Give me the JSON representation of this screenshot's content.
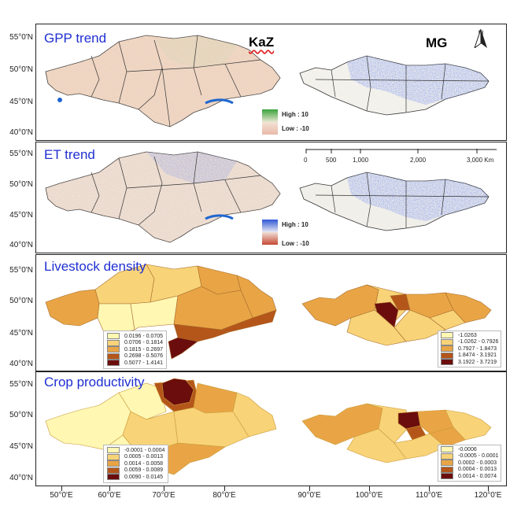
{
  "labels": {
    "kaz": "KaZ",
    "mg": "MG",
    "north": "N"
  },
  "lat_ticks": [
    "55°0'N",
    "50°0'N",
    "45°0'N",
    "40°0'N"
  ],
  "lon_ticks": [
    "50°0'E",
    "60°0'E",
    "70°0'E",
    "80°0'E",
    "90°0'E",
    "100°0'E",
    "110°0'E",
    "120°0'E"
  ],
  "scale": {
    "ticks": [
      "0",
      "500",
      "1,000",
      "2,000",
      "3,000 Km"
    ]
  },
  "panels": [
    {
      "title": "GPP trend",
      "legend": {
        "high": "High : 10",
        "low": "Low : -10",
        "high_color": "#4aa64a",
        "low_color": "#e8b8a8"
      }
    },
    {
      "title": "ET trend",
      "legend": {
        "high": "High : 10",
        "low": "Low : -10",
        "high_color": "#2f57d6",
        "low_color": "#c64a34"
      }
    },
    {
      "title": "Livestock density",
      "kaz_classes": [
        "0.0196 - 0.0705",
        "0.0706 - 0.1814",
        "0.1815 - 0.2697",
        "0.2698 - 0.5076",
        "0.5077 - 1.4141"
      ],
      "mg_classes": [
        "-1.0263",
        "-1.0262 - 0.7926",
        "0.7927 - 1.8473",
        "1.8474 - 3.1921",
        "3.1922 - 3.7219"
      ],
      "colors": [
        "#fff7b2",
        "#f8d378",
        "#e9a545",
        "#b4561a",
        "#6b0d0d"
      ]
    },
    {
      "title": "Crop productivity",
      "kaz_classes": [
        "-0.0001 - 0.0004",
        "0.0005 - 0.0013",
        "0.0014 - 0.0058",
        "0.0059 - 0.0089",
        "0.0090 - 0.0145"
      ],
      "mg_classes": [
        "-0.0006",
        "-0.0005 - 0.0001",
        "0.0002 - 0.0003",
        "0.0004 - 0.0013",
        "0.0014 - 0.0074"
      ],
      "colors": [
        "#fff7b2",
        "#f8d378",
        "#e9a545",
        "#b4561a",
        "#6b0d0d"
      ]
    }
  ]
}
